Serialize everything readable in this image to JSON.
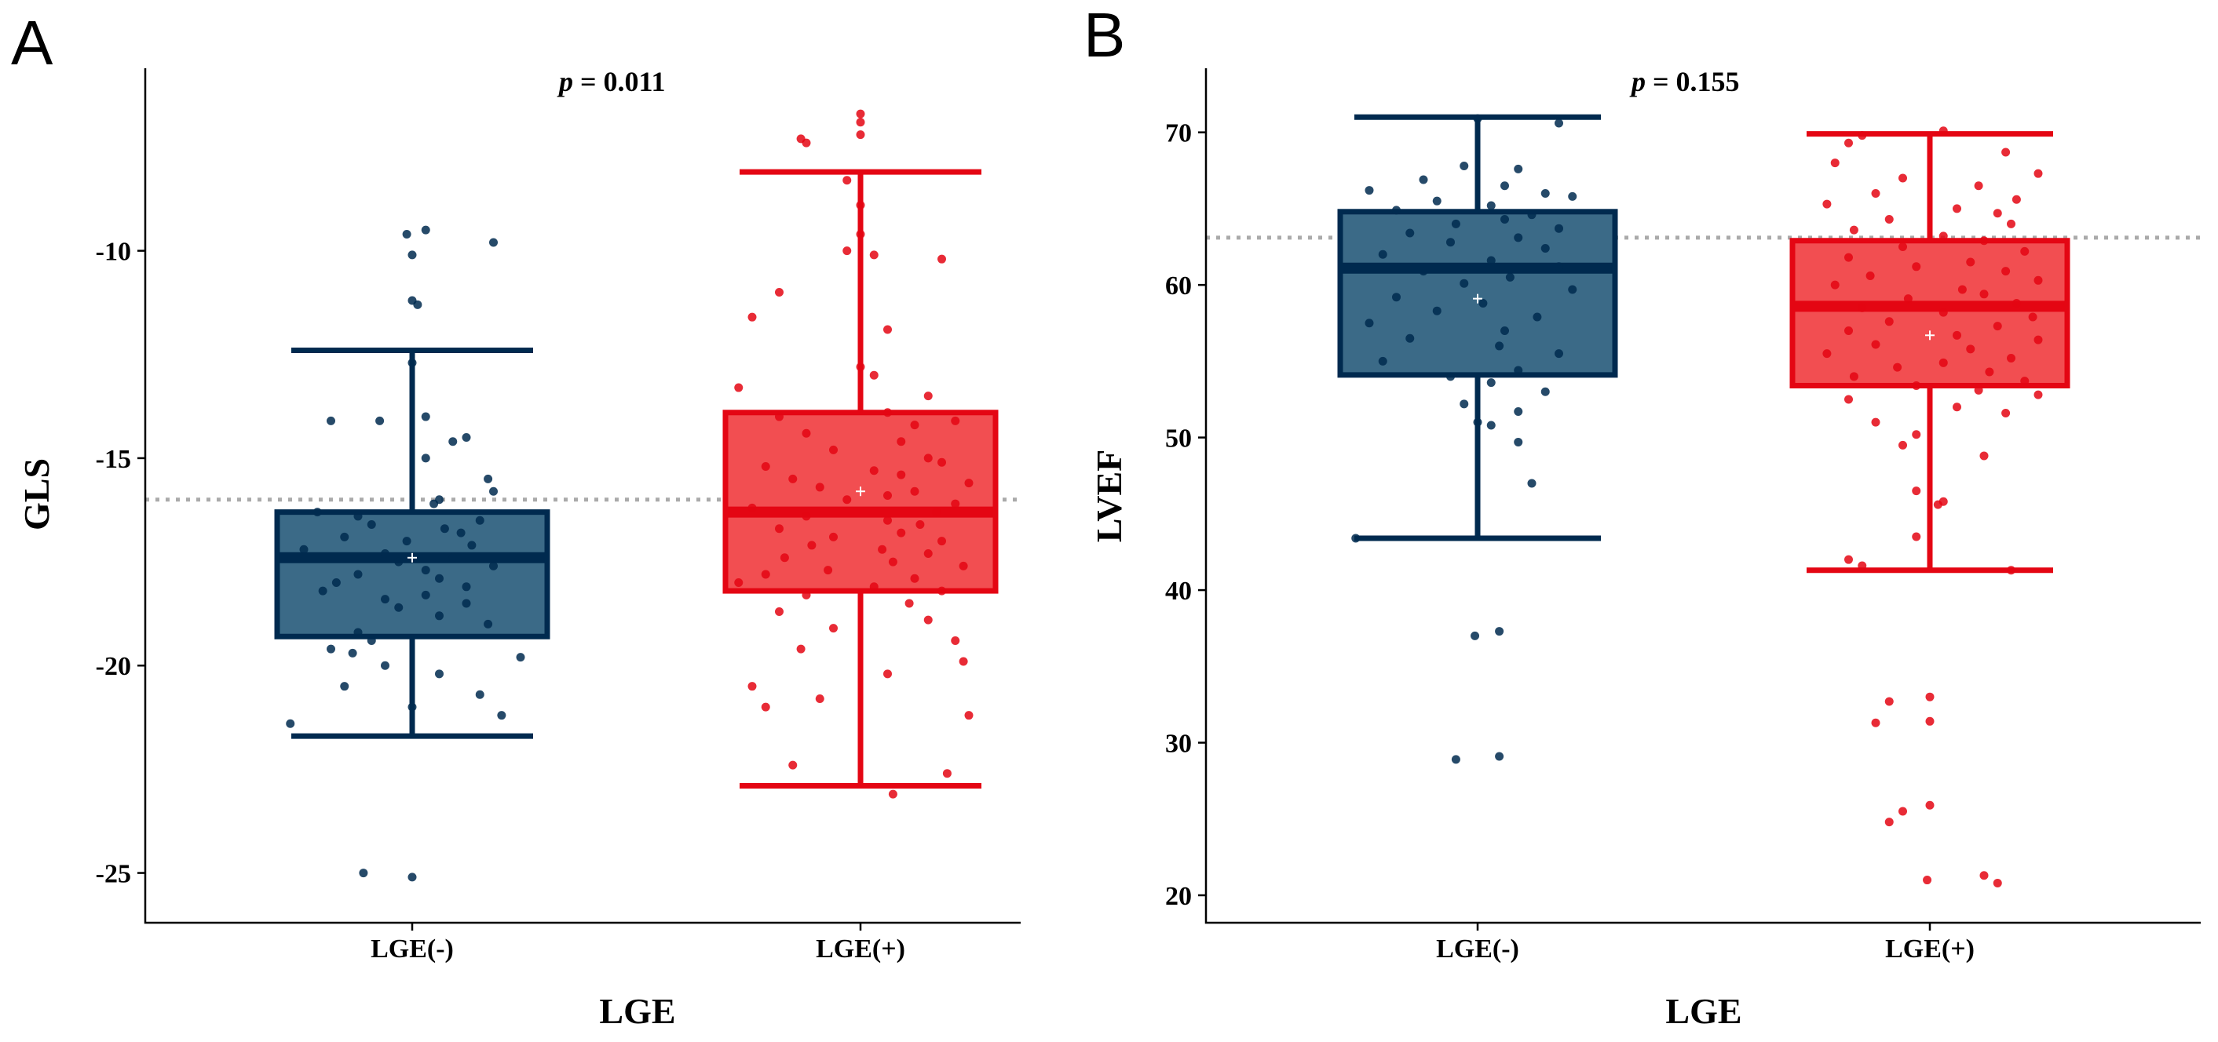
{
  "chart_data": [
    {
      "type": "box",
      "panel_label": "A",
      "xlabel": "LGE",
      "ylabel": "GLS",
      "ylim": [
        -26.2,
        -5.6
      ],
      "yticks": [
        -25,
        -20,
        -15,
        -10
      ],
      "categories": [
        "LGE(-)",
        "LGE(+)"
      ],
      "annotation": {
        "prefix": "p",
        "text": " = 0.011"
      },
      "reference_line": -16.0,
      "groups": [
        {
          "name": "LGE(-)",
          "color": "#002a4f",
          "fill": "#3b6a87",
          "whisker_low": -21.7,
          "q1": -19.3,
          "median": -17.4,
          "q3": -16.3,
          "whisker_high": -12.4,
          "mean": -17.4,
          "points": [
            -9.5,
            -9.6,
            -9.8,
            -10.1,
            -11.2,
            -11.3,
            -12.7,
            -14.1,
            -14.0,
            -14.1,
            -14.5,
            -14.6,
            -15.0,
            -15.5,
            -15.8,
            -16.0,
            -16.1,
            -16.3,
            -16.4,
            -16.5,
            -16.6,
            -16.7,
            -16.8,
            -16.9,
            -17.0,
            -17.1,
            -17.2,
            -17.3,
            -17.4,
            -17.5,
            -17.6,
            -17.7,
            -17.8,
            -17.9,
            -18.0,
            -18.1,
            -18.2,
            -18.3,
            -18.4,
            -18.5,
            -18.6,
            -18.8,
            -19.0,
            -19.2,
            -19.4,
            -19.6,
            -19.7,
            -19.8,
            -20.0,
            -20.2,
            -20.5,
            -20.7,
            -21.0,
            -21.2,
            -21.4,
            -25.0,
            -25.1
          ],
          "jitter": [
            0.05,
            -0.02,
            0.3,
            0.0,
            0.0,
            0.02,
            0.0,
            -0.3,
            0.05,
            -0.12,
            0.2,
            0.15,
            0.05,
            0.28,
            0.3,
            0.1,
            0.08,
            -0.35,
            -0.2,
            0.25,
            -0.15,
            0.12,
            0.18,
            -0.25,
            -0.02,
            0.22,
            -0.4,
            -0.1,
            0.15,
            -0.05,
            0.3,
            0.05,
            -0.2,
            0.1,
            -0.28,
            0.2,
            -0.33,
            0.05,
            -0.1,
            0.2,
            -0.05,
            0.1,
            0.28,
            -0.2,
            -0.15,
            -0.3,
            -0.22,
            0.4,
            -0.1,
            0.1,
            -0.25,
            0.25,
            0.0,
            0.33,
            -0.45,
            -0.18,
            0.0
          ]
        },
        {
          "name": "LGE(+)",
          "color": "#e40613",
          "fill": "#f24e51",
          "whisker_low": -22.9,
          "q1": -18.2,
          "median": -16.3,
          "q3": -13.9,
          "whisker_high": -8.1,
          "mean": -15.8,
          "points": [
            -6.7,
            -6.9,
            -7.2,
            -7.3,
            -7.4,
            -8.3,
            -8.9,
            -9.6,
            -10.0,
            -10.1,
            -10.2,
            -11.0,
            -11.6,
            -11.9,
            -12.8,
            -13.0,
            -13.3,
            -13.5,
            -13.9,
            -14.0,
            -14.1,
            -14.2,
            -14.4,
            -14.6,
            -14.8,
            -15.0,
            -15.1,
            -15.2,
            -15.3,
            -15.4,
            -15.5,
            -15.6,
            -15.7,
            -15.8,
            -15.9,
            -16.0,
            -16.1,
            -16.2,
            -16.3,
            -16.4,
            -16.5,
            -16.6,
            -16.7,
            -16.8,
            -16.9,
            -17.0,
            -17.1,
            -17.2,
            -17.3,
            -17.4,
            -17.5,
            -17.6,
            -17.7,
            -17.8,
            -17.9,
            -18.0,
            -18.1,
            -18.2,
            -18.3,
            -18.5,
            -18.7,
            -18.9,
            -19.1,
            -19.4,
            -19.6,
            -19.9,
            -20.2,
            -20.5,
            -20.8,
            -21.0,
            -21.2,
            -22.4,
            -22.6,
            -23.1
          ],
          "jitter": [
            0.0,
            0.0,
            0.0,
            -0.22,
            -0.2,
            -0.05,
            0.0,
            0.0,
            -0.05,
            0.05,
            0.3,
            -0.3,
            -0.4,
            0.1,
            0.0,
            0.05,
            -0.45,
            0.25,
            0.1,
            -0.3,
            0.35,
            0.2,
            -0.2,
            0.15,
            -0.1,
            0.25,
            0.3,
            -0.35,
            0.05,
            0.15,
            -0.25,
            0.4,
            -0.15,
            0.2,
            0.1,
            -0.05,
            0.35,
            -0.4,
            0.28,
            -0.2,
            0.1,
            0.22,
            -0.3,
            0.15,
            -0.1,
            0.3,
            -0.18,
            0.08,
            0.25,
            -0.28,
            0.12,
            0.38,
            -0.12,
            -0.35,
            0.2,
            -0.45,
            0.05,
            0.3,
            -0.2,
            0.18,
            -0.3,
            0.25,
            -0.1,
            0.35,
            -0.22,
            0.38,
            0.1,
            -0.4,
            -0.15,
            -0.35,
            0.4,
            -0.25,
            0.32,
            0.12
          ],
          "note": "jitter arrays are horizontal offsets in category units"
        }
      ]
    },
    {
      "type": "box",
      "panel_label": "B",
      "xlabel": "LGE",
      "ylabel": "LVEF",
      "ylim": [
        18.2,
        74.2
      ],
      "yticks": [
        20,
        30,
        40,
        50,
        60,
        70
      ],
      "categories": [
        "LGE(-)",
        "LGE(+)"
      ],
      "annotation": {
        "prefix": "p",
        "text": " = 0.155"
      },
      "reference_line": 63.1,
      "groups": [
        {
          "name": "LGE(-)",
          "color": "#002a4f",
          "fill": "#3b6a87",
          "whisker_low": 43.4,
          "q1": 54.1,
          "median": 61.1,
          "q3": 64.8,
          "whisker_high": 71.0,
          "mean": 59.1,
          "points": [
            70.9,
            70.6,
            67.8,
            67.6,
            66.9,
            66.5,
            66.2,
            66.0,
            65.8,
            65.5,
            65.2,
            64.9,
            64.6,
            64.3,
            64.0,
            63.7,
            63.4,
            63.1,
            62.8,
            62.4,
            62.0,
            61.6,
            61.2,
            60.9,
            60.5,
            60.1,
            59.7,
            59.2,
            58.8,
            58.3,
            57.9,
            57.5,
            57.0,
            56.5,
            56.0,
            55.5,
            55.0,
            54.4,
            54.0,
            53.6,
            53.0,
            52.2,
            51.7,
            51.0,
            50.8,
            49.7,
            47.0,
            43.4,
            37.3,
            37.0,
            29.1,
            28.9
          ],
          "jitter": [
            0.0,
            0.3,
            -0.05,
            0.15,
            -0.2,
            0.1,
            -0.4,
            0.25,
            0.35,
            -0.15,
            0.05,
            -0.3,
            0.2,
            0.1,
            -0.08,
            0.3,
            -0.25,
            0.15,
            -0.1,
            0.25,
            -0.35,
            0.05,
            0.3,
            -0.2,
            0.12,
            -0.05,
            0.35,
            -0.3,
            0.02,
            -0.15,
            0.22,
            -0.4,
            0.1,
            -0.25,
            0.08,
            0.3,
            -0.35,
            0.15,
            -0.1,
            0.05,
            0.25,
            -0.05,
            0.15,
            0.0,
            0.05,
            0.15,
            0.2,
            -0.45,
            0.08,
            -0.01,
            0.08,
            -0.08
          ]
        },
        {
          "name": "LGE(+)",
          "color": "#e40613",
          "fill": "#f24e51",
          "whisker_low": 41.3,
          "q1": 53.4,
          "median": 58.6,
          "q3": 62.9,
          "whisker_high": 69.9,
          "mean": 56.7,
          "points": [
            70.1,
            69.8,
            69.3,
            68.7,
            68.0,
            67.3,
            67.0,
            66.5,
            66.0,
            65.6,
            65.3,
            65.0,
            64.7,
            64.3,
            64.0,
            63.6,
            63.2,
            62.9,
            62.5,
            62.2,
            61.8,
            61.5,
            61.2,
            60.9,
            60.6,
            60.3,
            60.0,
            59.7,
            59.4,
            59.1,
            58.8,
            58.5,
            58.2,
            57.9,
            57.6,
            57.3,
            57.0,
            56.7,
            56.4,
            56.1,
            55.8,
            55.5,
            55.2,
            54.9,
            54.6,
            54.3,
            54.0,
            53.7,
            53.4,
            53.1,
            52.8,
            52.5,
            52.0,
            51.6,
            51.0,
            50.2,
            49.5,
            48.8,
            46.5,
            45.8,
            45.6,
            43.5,
            42.0,
            41.6,
            41.3,
            33.0,
            32.7,
            31.4,
            31.3,
            25.9,
            25.5,
            24.8,
            21.3,
            21.0,
            20.8
          ],
          "jitter": [
            0.05,
            -0.25,
            -0.3,
            0.28,
            -0.35,
            0.4,
            -0.1,
            0.18,
            -0.2,
            0.32,
            -0.38,
            0.1,
            0.25,
            -0.15,
            0.3,
            -0.28,
            0.05,
            0.2,
            -0.1,
            0.35,
            -0.3,
            0.15,
            -0.05,
            0.28,
            -0.22,
            0.4,
            -0.35,
            0.12,
            0.2,
            -0.08,
            0.32,
            -0.25,
            0.05,
            0.38,
            -0.15,
            0.25,
            -0.3,
            0.1,
            0.4,
            -0.2,
            0.15,
            -0.38,
            0.3,
            0.05,
            -0.12,
            0.22,
            -0.28,
            0.35,
            -0.05,
            0.18,
            0.4,
            -0.3,
            0.1,
            0.28,
            -0.2,
            -0.05,
            -0.1,
            0.2,
            -0.05,
            0.05,
            0.03,
            -0.05,
            -0.3,
            -0.25,
            0.3,
            0.0,
            -0.15,
            0.0,
            -0.2,
            0.0,
            -0.1,
            -0.15,
            0.2,
            -0.01,
            0.25
          ]
        }
      ]
    }
  ]
}
